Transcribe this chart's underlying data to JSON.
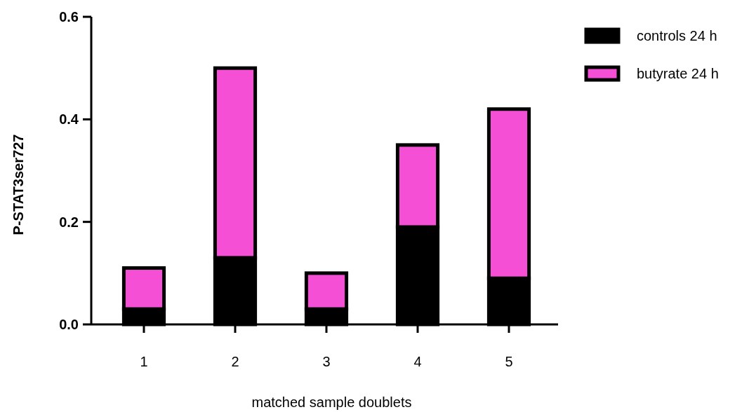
{
  "chart_data": {
    "type": "bar",
    "stacked": true,
    "xlabel": "matched sample doublets",
    "ylabel": "P-STAT3ser727",
    "categories": [
      "1",
      "2",
      "3",
      "4",
      "5"
    ],
    "series": [
      {
        "name": "controls 24 h",
        "color": "#000000",
        "values": [
          0.03,
          0.13,
          0.03,
          0.19,
          0.09
        ]
      },
      {
        "name": "butyrate 24 h",
        "color": "#f54fd6",
        "values": [
          0.08,
          0.37,
          0.07,
          0.16,
          0.33
        ]
      }
    ],
    "ylim": [
      0,
      0.6
    ],
    "yticks": [
      {
        "value": 0,
        "label": "0.0"
      },
      {
        "value": 0.2,
        "label": "0.2"
      },
      {
        "value": 0.4,
        "label": "0.4"
      },
      {
        "value": 0.6,
        "label": "0.6"
      }
    ],
    "legend": "top right",
    "grid": false
  }
}
